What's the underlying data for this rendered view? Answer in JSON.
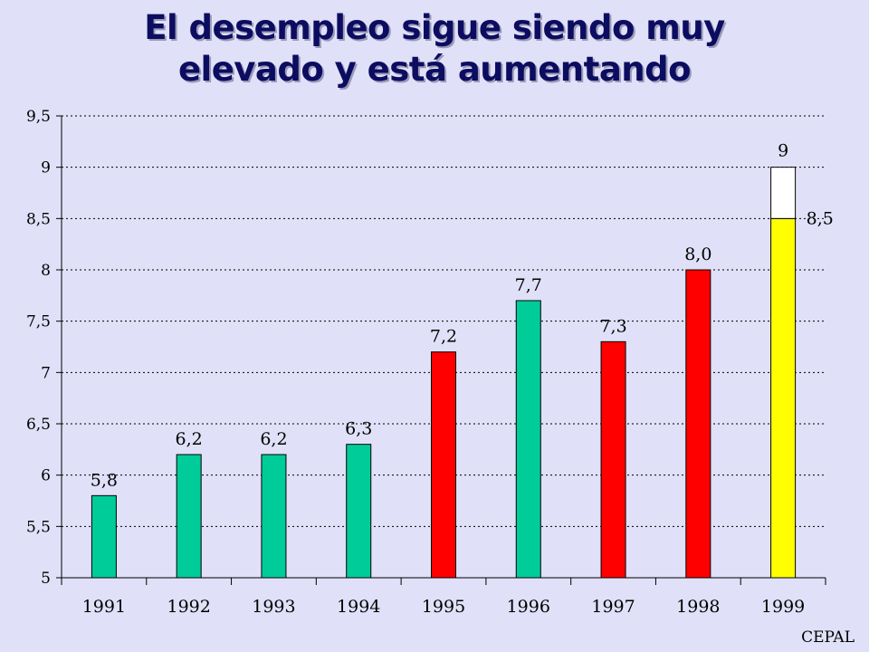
{
  "title": {
    "line1": "El desempleo sigue siendo muy",
    "line2": "elevado y está aumentando"
  },
  "source": "CEPAL",
  "chart_data": {
    "type": "bar",
    "title": "El desempleo sigue siendo muy elevado y está aumentando",
    "categories": [
      "1991",
      "1992",
      "1993",
      "1994",
      "1995",
      "1996",
      "1997",
      "1998",
      "1999"
    ],
    "values": [
      5.8,
      6.2,
      6.2,
      6.3,
      7.2,
      7.7,
      7.3,
      8.0,
      8.5
    ],
    "value_labels": [
      "5,8",
      "6,2",
      "6,2",
      "6,3",
      "7,2",
      "7,7",
      "7,3",
      "8,0",
      "8,5"
    ],
    "bar_colors": [
      "#00cc99",
      "#00cc99",
      "#00cc99",
      "#00cc99",
      "#ff0000",
      "#00cc99",
      "#ff0000",
      "#ff0000",
      "#ffff00"
    ],
    "extension": {
      "category": "1999",
      "from": 8.5,
      "to": 9,
      "label": "9",
      "color": "#ffffff"
    },
    "ylim": [
      5,
      9.5
    ],
    "yticks": [
      5,
      5.5,
      6,
      6.5,
      7,
      7.5,
      8,
      8.5,
      9,
      9.5
    ],
    "ytick_labels": [
      "5",
      "5,5",
      "6",
      "6,5",
      "7",
      "7,5",
      "8",
      "8,5",
      "9",
      "9,5"
    ],
    "grid": true,
    "xlabel": "",
    "ylabel": ""
  }
}
